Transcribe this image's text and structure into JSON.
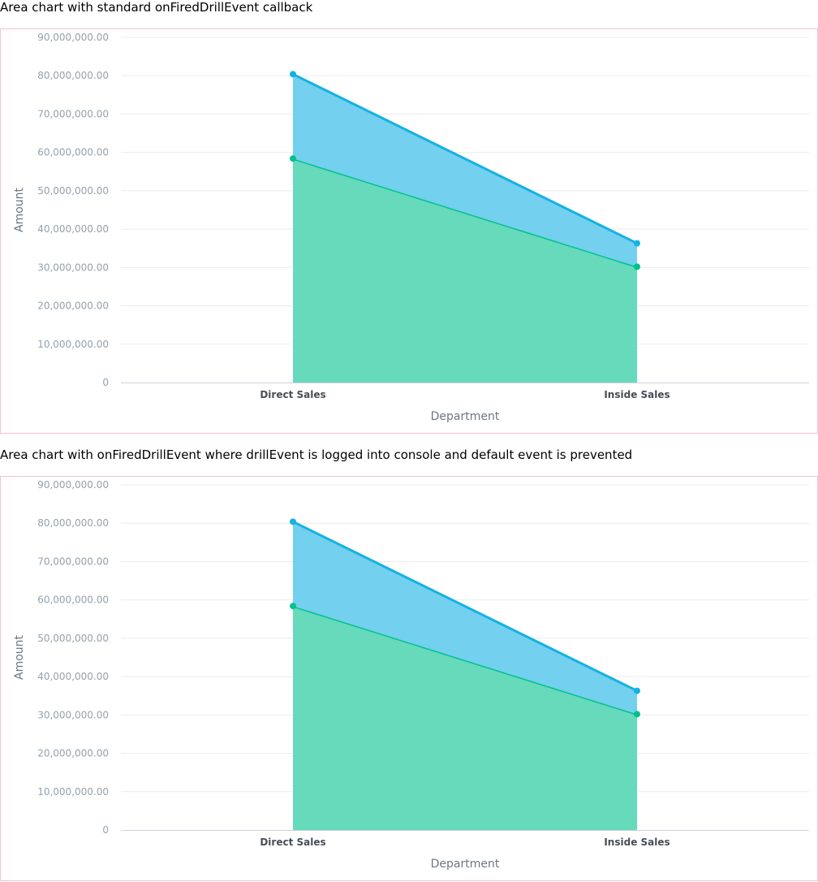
{
  "charts": [
    {
      "heading": "Area chart with standard onFiredDrillEvent callback"
    },
    {
      "heading": "Area chart with onFiredDrillEvent where drillEvent is logged into console and default event is prevented"
    }
  ],
  "chart_data": [
    {
      "type": "area",
      "stacked": true,
      "title": "Area chart with standard onFiredDrillEvent callback",
      "xlabel": "Department",
      "ylabel": "Amount",
      "categories": [
        "Direct Sales",
        "Inside Sales"
      ],
      "y_ticks": [
        "0",
        "10,000,000.00",
        "20,000,000.00",
        "30,000,000.00",
        "40,000,000.00",
        "50,000,000.00",
        "60,000,000.00",
        "70,000,000.00",
        "80,000,000.00",
        "90,000,000.00"
      ],
      "ylim": [
        0,
        90000000
      ],
      "grid": true,
      "series": [
        {
          "values": [
            58400000,
            30200000
          ],
          "color": "#00c18d",
          "fill": "#66dabb"
        },
        {
          "values": [
            22000000,
            6100000
          ],
          "color": "#14b2e2",
          "fill": "#73d0ee"
        }
      ]
    },
    {
      "type": "area",
      "stacked": true,
      "title": "Area chart with onFiredDrillEvent where drillEvent is logged into console and default event is prevented",
      "xlabel": "Department",
      "ylabel": "Amount",
      "categories": [
        "Direct Sales",
        "Inside Sales"
      ],
      "y_ticks": [
        "0",
        "10,000,000.00",
        "20,000,000.00",
        "30,000,000.00",
        "40,000,000.00",
        "50,000,000.00",
        "60,000,000.00",
        "70,000,000.00",
        "80,000,000.00",
        "90,000,000.00"
      ],
      "ylim": [
        0,
        90000000
      ],
      "grid": true,
      "series": [
        {
          "values": [
            58400000,
            30200000
          ],
          "color": "#00c18d",
          "fill": "#66dabb"
        },
        {
          "values": [
            22000000,
            6100000
          ],
          "color": "#14b2e2",
          "fill": "#73d0ee"
        }
      ]
    }
  ]
}
